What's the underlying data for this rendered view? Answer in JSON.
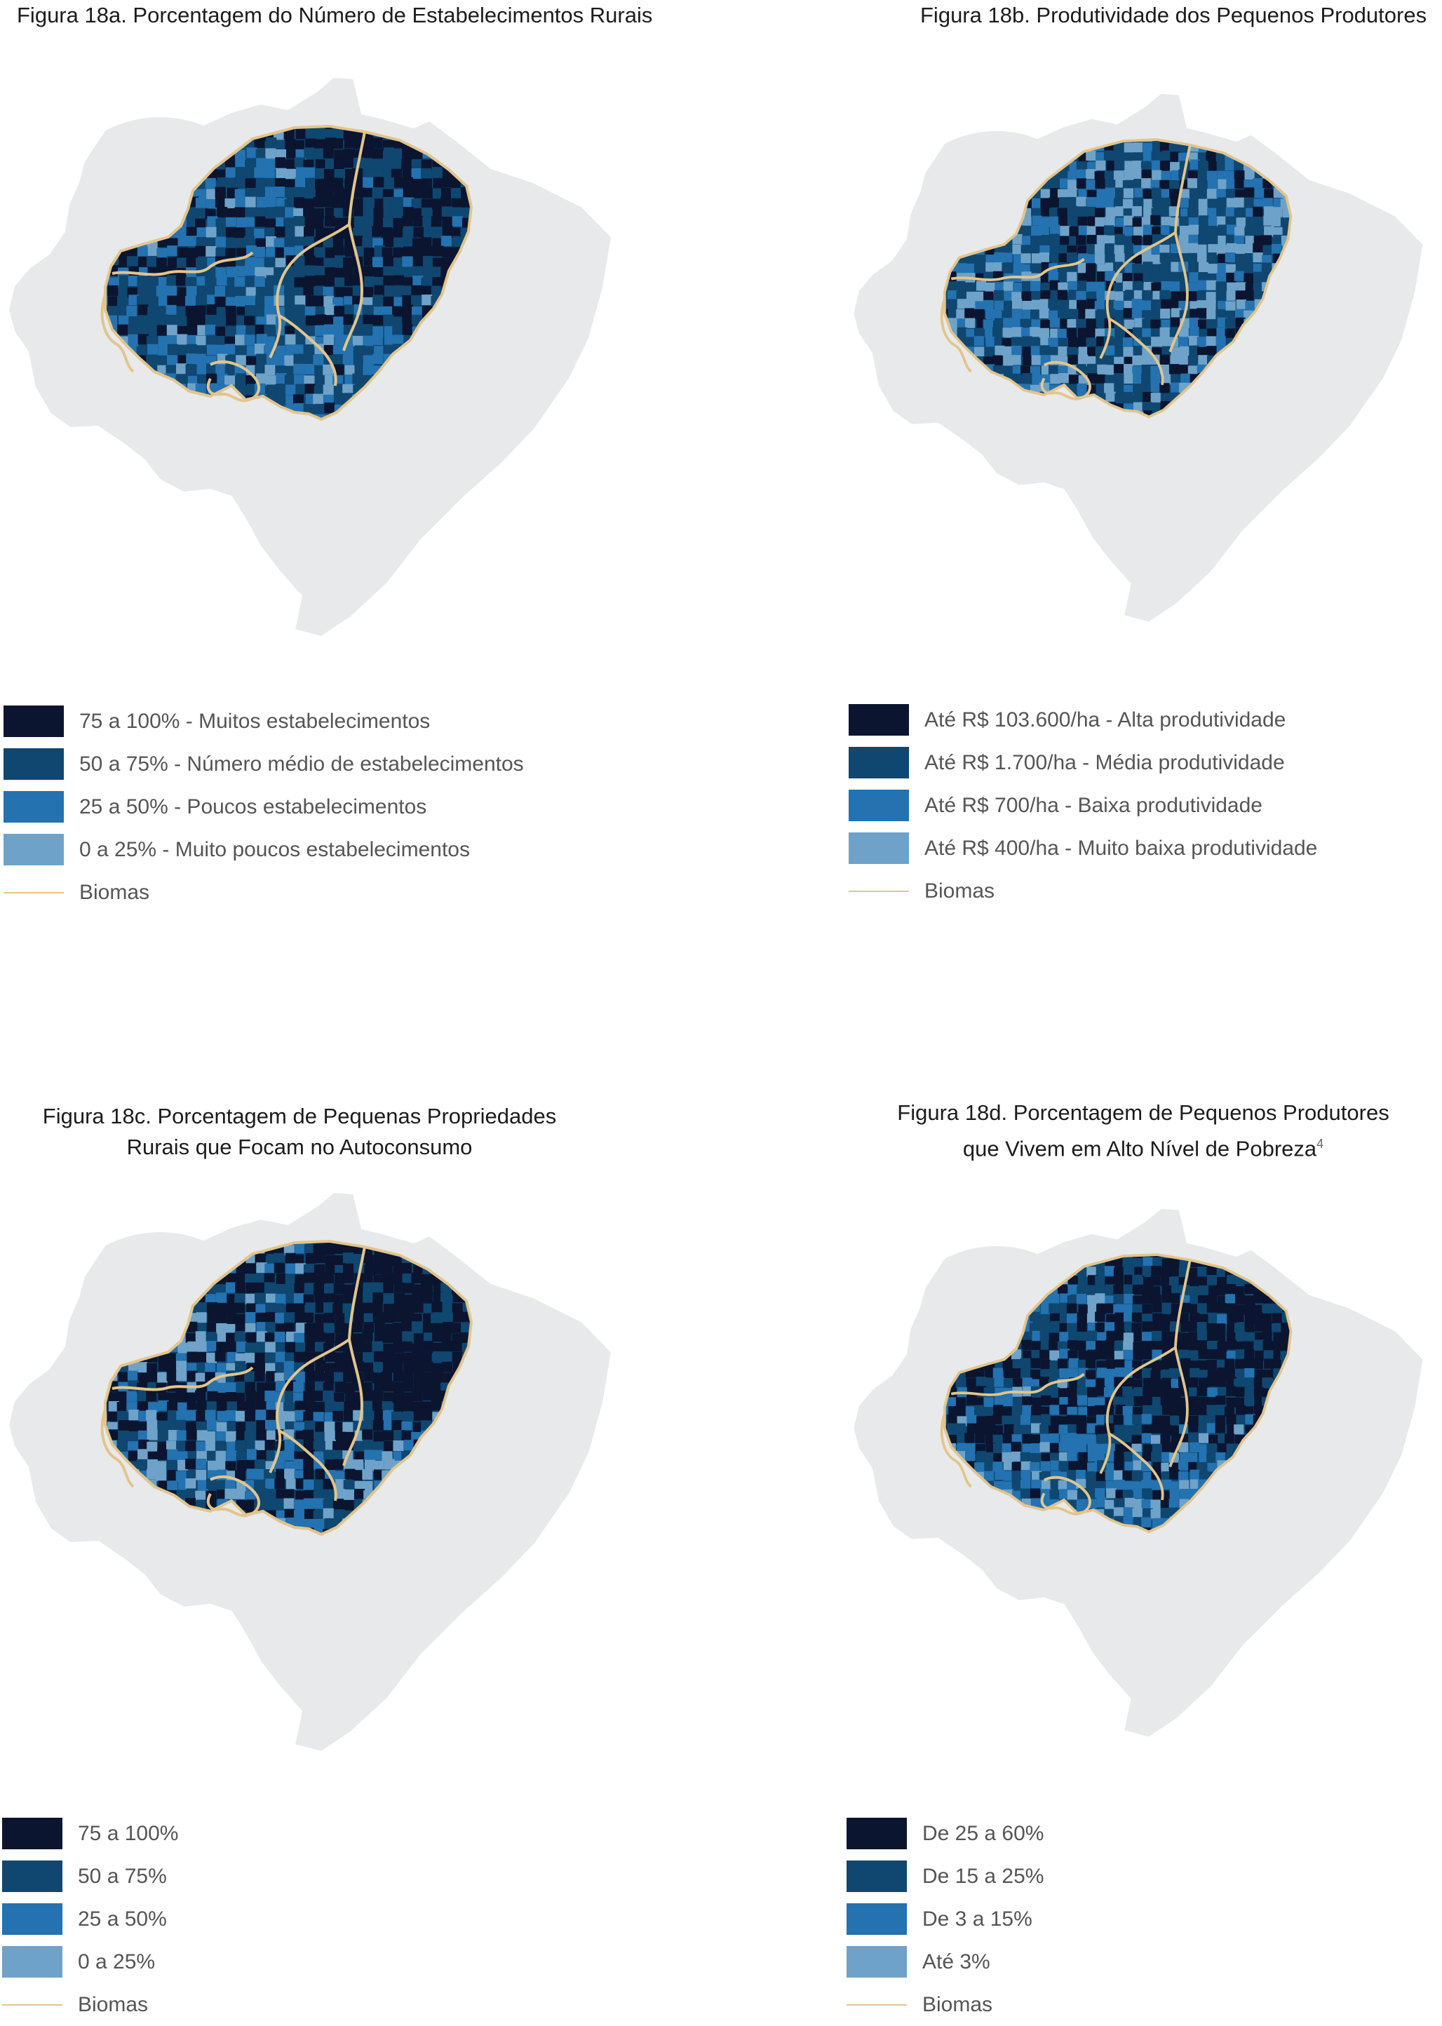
{
  "colors": {
    "c1": "#0b1530",
    "c2": "#0f4770",
    "c3": "#2472b0",
    "c4": "#6fa2c8",
    "biome": "#e3c58b",
    "country": "#e8e9ea"
  },
  "figures": [
    {
      "title": "Figura 18a. Porcentagem do Número de Estabelecimentos Rurais",
      "legend": [
        "75 a 100% - Muitos estabelecimentos",
        "50 a 75% - Número médio de estabelecimentos",
        "25 a 50% - Poucos estabelecimentos",
        "0 a 25% - Muito poucos estabelecimentos",
        "Biomas"
      ]
    },
    {
      "title": "Figura 18b. Produtividade dos Pequenos Produtores",
      "legend": [
        "Até R$ 103.600/ha - Alta produtividade",
        "Até R$ 1.700/ha - Média produtividade",
        "Até R$ 700/ha - Baixa produtividade",
        "Até R$ 400/ha - Muito baixa produtividade",
        "Biomas"
      ]
    },
    {
      "title_line1": "Figura 18c. Porcentagem de Pequenas Propriedades",
      "title_line2": "Rurais que Focam no Autoconsumo",
      "legend": [
        "75 a 100%",
        "50 a 75%",
        "25 a 50%",
        "0 a 25%",
        "Biomas"
      ]
    },
    {
      "title_line1": "Figura 18d. Porcentagem de Pequenos Produtores",
      "title_line2": "que Vivem em Alto Nível de Pobreza",
      "title_sup": "4",
      "legend": [
        "De 25 a 60%",
        "De 15 a 25%",
        "De 3 a 15%",
        "Até 3%",
        "Biomas"
      ]
    }
  ]
}
